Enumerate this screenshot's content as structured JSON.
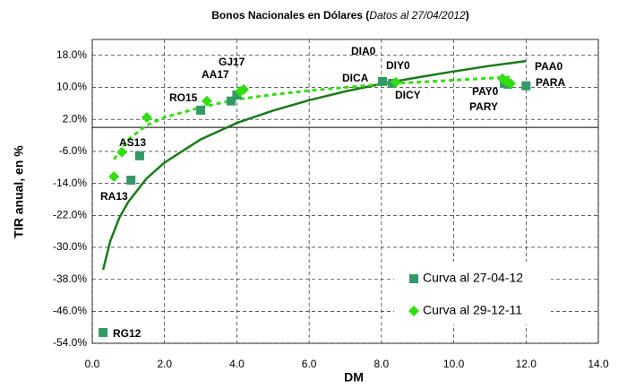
{
  "chart_data": {
    "type": "scatter",
    "title": [
      "Bonos Nacionales en Dólares (",
      "Datos al 27/04/2012",
      ")"
    ],
    "x_label": "DM",
    "y_label": "TIR anual, en %",
    "xlim": [
      0,
      14
    ],
    "xticks": [
      {
        "value": 0,
        "label": "0.0"
      },
      {
        "value": 2,
        "label": "2.0"
      },
      {
        "value": 4,
        "label": "4.0"
      },
      {
        "value": 6,
        "label": "6.0"
      },
      {
        "value": 8,
        "label": "8.0"
      },
      {
        "value": 10,
        "label": "10.0"
      },
      {
        "value": 12,
        "label": "12.0"
      },
      {
        "value": 14,
        "label": "14.0"
      }
    ],
    "ylim": [
      -54,
      22
    ],
    "yticks": [
      {
        "value": 18,
        "label": "18.0%"
      },
      {
        "value": 10,
        "label": "10.0%"
      },
      {
        "value": 2,
        "label": "2.0%"
      },
      {
        "value": -6,
        "label": "-6.0%"
      },
      {
        "value": -14,
        "label": "-14.0%"
      },
      {
        "value": -22,
        "label": "-22.0%"
      },
      {
        "value": -30,
        "label": "-30.0%"
      },
      {
        "value": -38,
        "label": "-38.0%"
      },
      {
        "value": -46,
        "label": "-46.0%"
      },
      {
        "value": -54,
        "label": "-54.0%"
      }
    ],
    "grid": true,
    "legend": "lower right",
    "series": [
      {
        "name": "Curva al 27-04-12",
        "color": "#339966",
        "marker": "square",
        "x": [
          0.3,
          1.07,
          1.31,
          3.0,
          3.84,
          4.0,
          8.03,
          8.3,
          11.4,
          11.5,
          12.0
        ],
        "values": [
          -51.3,
          -13.2,
          -7.1,
          4.3,
          6.6,
          8.1,
          11.5,
          11.0,
          11.0,
          10.8,
          10.4
        ]
      },
      {
        "name": "Curva al 29-12-11",
        "color": "#33dd11",
        "marker": "diamond",
        "x": [
          0.6,
          0.82,
          1.51,
          3.17,
          4.09,
          4.19,
          8.4,
          11.35,
          11.45,
          11.57
        ],
        "values": [
          -12.3,
          -6.2,
          2.5,
          6.6,
          9.0,
          9.5,
          11.3,
          12.2,
          11.5,
          11.0
        ]
      }
    ],
    "trendlines": [
      {
        "color": "#1a7a1a",
        "style": "solid",
        "x": [
          0.3,
          0.5,
          0.75,
          1,
          1.5,
          2,
          3,
          4,
          5,
          6,
          7,
          8,
          9,
          10,
          11,
          12
        ],
        "values": [
          -35.6,
          -28.4,
          -22.6,
          -18.6,
          -12.8,
          -8.8,
          -3.0,
          1.1,
          4.2,
          6.8,
          9.0,
          10.9,
          12.5,
          14.0,
          15.4,
          16.6
        ]
      },
      {
        "color": "#33dd11",
        "style": "dashed",
        "x": [
          0.6,
          1,
          1.5,
          2,
          3,
          4,
          5,
          6,
          7,
          8,
          9,
          10,
          11,
          11.6
        ],
        "values": [
          -8,
          -3,
          0.5,
          2.5,
          5,
          7,
          8.2,
          9.2,
          10,
          10.8,
          11.3,
          11.8,
          12.3,
          12.6
        ]
      }
    ],
    "point_labels": [
      "RG12",
      "RA13",
      "AS13",
      "RO15",
      "AA17",
      "GJ17",
      "DIA0",
      "DICA",
      "DIY0",
      "DICY",
      "PAY0",
      "PARY",
      "PAA0",
      "PARA"
    ]
  }
}
